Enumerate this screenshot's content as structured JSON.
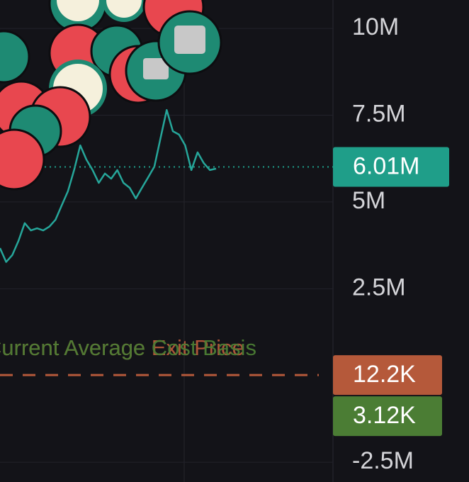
{
  "chart_data": {
    "type": "line",
    "values": [
      3670000,
      3270000,
      3470000,
      3880000,
      4390000,
      4180000,
      4240000,
      4180000,
      4290000,
      4490000,
      4900000,
      5310000,
      5920000,
      6630000,
      6220000,
      5920000,
      5550000,
      5820000,
      5670000,
      5920000,
      5550000,
      5410000,
      5100000,
      5410000,
      5710000,
      6020000,
      6840000,
      7650000,
      7040000,
      6940000,
      6630000,
      5920000,
      6430000,
      6120000,
      5920000,
      5960000
    ],
    "color": "#26a69a",
    "ylim": [
      -3070000,
      10820000
    ],
    "yticks": [
      {
        "value": 10000000,
        "label": "10M"
      },
      {
        "value": 7500000,
        "label": "7.5M"
      },
      {
        "value": 5000000,
        "label": "5M"
      },
      {
        "value": 2500000,
        "label": "2.5M"
      },
      {
        "value": -2500000,
        "label": "-2.5M"
      }
    ],
    "grid": true,
    "price_lines": [
      {
        "label": "6.01M",
        "value": 6010000,
        "color": "#1f9e89"
      },
      {
        "label": "12.2K",
        "value": 12200,
        "color": "#b5593a"
      },
      {
        "label": "3.12K",
        "value": 3120,
        "color": "#4b7d34"
      }
    ],
    "annotations": [
      {
        "text": "Current Average Exit Price",
        "color": "#b5593a"
      },
      {
        "text": "Current Average Cost Basis",
        "color": "#4b7d34"
      }
    ]
  }
}
